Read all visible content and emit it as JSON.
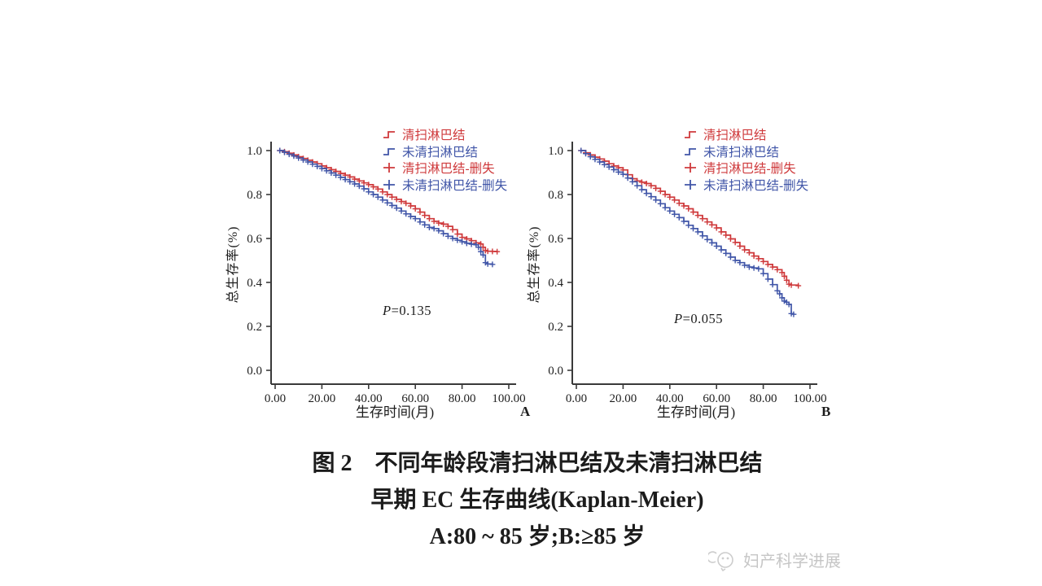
{
  "colors": {
    "dissected_red": "#cf3a3c",
    "non_dissected_blue": "#4156a8",
    "axis": "#3a3a3a",
    "text": "#1c1c1c",
    "watermark": "#c6c6c6"
  },
  "legend": {
    "position": "top-right",
    "items": [
      {
        "label": "清扫淋巴结",
        "marker": "step",
        "color": "#cf3a3c"
      },
      {
        "label": "未清扫淋巴结",
        "marker": "step",
        "color": "#4156a8"
      },
      {
        "label": "清扫淋巴结-删失",
        "marker": "plus",
        "color": "#cf3a3c"
      },
      {
        "label": "未清扫淋巴结-删失",
        "marker": "plus",
        "color": "#4156a8"
      }
    ]
  },
  "chart_data": [
    {
      "type": "line",
      "subtype": "kaplan-meier-step",
      "panel_label": "A",
      "p_sym": "P",
      "p_val": "=0.135",
      "p_value": 0.135,
      "xlabel": "生存时间(月)",
      "ylabel": "总生存率(%)",
      "xlim": [
        0,
        105
      ],
      "ylim": [
        0.0,
        1.05
      ],
      "x_ticks": [
        "0.00",
        "20.00",
        "40.00",
        "60.00",
        "80.00",
        "100.00"
      ],
      "y_ticks": [
        "0.0",
        "0.2",
        "0.4",
        "0.6",
        "0.8",
        "1.0"
      ],
      "grid": false,
      "series": [
        {
          "name": "清扫淋巴结",
          "color": "#cf3a3c",
          "points": [
            [
              2,
              1.0
            ],
            [
              4,
              0.995
            ],
            [
              6,
              0.988
            ],
            [
              8,
              0.98
            ],
            [
              10,
              0.972
            ],
            [
              12,
              0.964
            ],
            [
              14,
              0.956
            ],
            [
              16,
              0.948
            ],
            [
              18,
              0.94
            ],
            [
              20,
              0.93
            ],
            [
              22,
              0.922
            ],
            [
              24,
              0.913
            ],
            [
              26,
              0.905
            ],
            [
              28,
              0.896
            ],
            [
              30,
              0.888
            ],
            [
              32,
              0.88
            ],
            [
              34,
              0.87
            ],
            [
              36,
              0.862
            ],
            [
              38,
              0.853
            ],
            [
              40,
              0.845
            ],
            [
              42,
              0.835
            ],
            [
              44,
              0.825
            ],
            [
              46,
              0.812
            ],
            [
              48,
              0.8
            ],
            [
              50,
              0.788
            ],
            [
              52,
              0.778
            ],
            [
              54,
              0.768
            ],
            [
              56,
              0.76
            ],
            [
              58,
              0.748
            ],
            [
              60,
              0.735
            ],
            [
              62,
              0.72
            ],
            [
              64,
              0.705
            ],
            [
              66,
              0.69
            ],
            [
              68,
              0.678
            ],
            [
              70,
              0.67
            ],
            [
              72,
              0.665
            ],
            [
              74,
              0.655
            ],
            [
              76,
              0.64
            ],
            [
              78,
              0.62
            ],
            [
              80,
              0.605
            ],
            [
              82,
              0.598
            ],
            [
              84,
              0.59
            ],
            [
              86,
              0.58
            ],
            [
              88,
              0.575
            ],
            [
              89,
              0.56
            ],
            [
              90,
              0.545
            ],
            [
              91,
              0.542
            ],
            [
              93,
              0.541
            ],
            [
              95,
              0.54
            ]
          ]
        },
        {
          "name": "未清扫淋巴结",
          "color": "#4156a8",
          "points": [
            [
              2,
              1.0
            ],
            [
              4,
              0.992
            ],
            [
              6,
              0.983
            ],
            [
              8,
              0.975
            ],
            [
              10,
              0.966
            ],
            [
              12,
              0.957
            ],
            [
              14,
              0.948
            ],
            [
              16,
              0.938
            ],
            [
              18,
              0.928
            ],
            [
              20,
              0.918
            ],
            [
              22,
              0.908
            ],
            [
              24,
              0.898
            ],
            [
              26,
              0.888
            ],
            [
              28,
              0.878
            ],
            [
              30,
              0.868
            ],
            [
              32,
              0.858
            ],
            [
              34,
              0.848
            ],
            [
              36,
              0.838
            ],
            [
              38,
              0.826
            ],
            [
              40,
              0.812
            ],
            [
              42,
              0.8
            ],
            [
              44,
              0.788
            ],
            [
              46,
              0.775
            ],
            [
              48,
              0.762
            ],
            [
              50,
              0.75
            ],
            [
              52,
              0.738
            ],
            [
              54,
              0.725
            ],
            [
              56,
              0.712
            ],
            [
              58,
              0.7
            ],
            [
              60,
              0.69
            ],
            [
              62,
              0.675
            ],
            [
              64,
              0.662
            ],
            [
              66,
              0.65
            ],
            [
              68,
              0.645
            ],
            [
              70,
              0.635
            ],
            [
              72,
              0.622
            ],
            [
              74,
              0.61
            ],
            [
              76,
              0.6
            ],
            [
              78,
              0.592
            ],
            [
              80,
              0.585
            ],
            [
              82,
              0.578
            ],
            [
              84,
              0.574
            ],
            [
              86,
              0.571
            ],
            [
              87,
              0.56
            ],
            [
              88,
              0.54
            ],
            [
              89,
              0.525
            ],
            [
              90,
              0.49
            ],
            [
              91,
              0.484
            ],
            [
              93,
              0.482
            ]
          ]
        }
      ]
    },
    {
      "type": "line",
      "subtype": "kaplan-meier-step",
      "panel_label": "B",
      "p_sym": "P",
      "p_val": "=0.055",
      "p_value": 0.055,
      "xlabel": "生存时间(月)",
      "ylabel": "总生存率(%)",
      "xlim": [
        0,
        105
      ],
      "ylim": [
        0.0,
        1.05
      ],
      "x_ticks": [
        "0.00",
        "20.00",
        "40.00",
        "60.00",
        "80.00",
        "100.00"
      ],
      "y_ticks": [
        "0.0",
        "0.2",
        "0.4",
        "0.6",
        "0.8",
        "1.0"
      ],
      "grid": false,
      "series": [
        {
          "name": "清扫淋巴结",
          "color": "#cf3a3c",
          "points": [
            [
              2,
              1.0
            ],
            [
              4,
              0.99
            ],
            [
              6,
              0.98
            ],
            [
              8,
              0.97
            ],
            [
              10,
              0.962
            ],
            [
              12,
              0.952
            ],
            [
              14,
              0.94
            ],
            [
              16,
              0.93
            ],
            [
              18,
              0.922
            ],
            [
              20,
              0.912
            ],
            [
              22,
              0.89
            ],
            [
              24,
              0.872
            ],
            [
              26,
              0.862
            ],
            [
              28,
              0.856
            ],
            [
              30,
              0.85
            ],
            [
              32,
              0.84
            ],
            [
              34,
              0.828
            ],
            [
              36,
              0.815
            ],
            [
              38,
              0.8
            ],
            [
              40,
              0.788
            ],
            [
              42,
              0.775
            ],
            [
              44,
              0.76
            ],
            [
              46,
              0.748
            ],
            [
              48,
              0.735
            ],
            [
              50,
              0.72
            ],
            [
              52,
              0.705
            ],
            [
              54,
              0.69
            ],
            [
              56,
              0.675
            ],
            [
              58,
              0.662
            ],
            [
              60,
              0.648
            ],
            [
              62,
              0.63
            ],
            [
              64,
              0.615
            ],
            [
              66,
              0.598
            ],
            [
              68,
              0.582
            ],
            [
              70,
              0.565
            ],
            [
              72,
              0.548
            ],
            [
              74,
              0.535
            ],
            [
              76,
              0.52
            ],
            [
              78,
              0.508
            ],
            [
              80,
              0.495
            ],
            [
              82,
              0.482
            ],
            [
              84,
              0.47
            ],
            [
              86,
              0.458
            ],
            [
              88,
              0.445
            ],
            [
              89,
              0.428
            ],
            [
              90,
              0.41
            ],
            [
              91,
              0.392
            ],
            [
              92,
              0.388
            ],
            [
              95,
              0.385
            ]
          ]
        },
        {
          "name": "未清扫淋巴结",
          "color": "#4156a8",
          "points": [
            [
              2,
              1.0
            ],
            [
              4,
              0.986
            ],
            [
              6,
              0.972
            ],
            [
              8,
              0.96
            ],
            [
              10,
              0.948
            ],
            [
              12,
              0.936
            ],
            [
              14,
              0.925
            ],
            [
              16,
              0.913
            ],
            [
              18,
              0.902
            ],
            [
              20,
              0.892
            ],
            [
              22,
              0.875
            ],
            [
              24,
              0.858
            ],
            [
              26,
              0.84
            ],
            [
              28,
              0.822
            ],
            [
              30,
              0.805
            ],
            [
              32,
              0.79
            ],
            [
              34,
              0.775
            ],
            [
              36,
              0.758
            ],
            [
              38,
              0.74
            ],
            [
              40,
              0.725
            ],
            [
              42,
              0.71
            ],
            [
              44,
              0.695
            ],
            [
              46,
              0.678
            ],
            [
              48,
              0.66
            ],
            [
              50,
              0.645
            ],
            [
              52,
              0.63
            ],
            [
              54,
              0.612
            ],
            [
              56,
              0.595
            ],
            [
              58,
              0.58
            ],
            [
              60,
              0.565
            ],
            [
              62,
              0.548
            ],
            [
              64,
              0.532
            ],
            [
              66,
              0.515
            ],
            [
              68,
              0.5
            ],
            [
              70,
              0.49
            ],
            [
              72,
              0.478
            ],
            [
              74,
              0.47
            ],
            [
              76,
              0.466
            ],
            [
              78,
              0.462
            ],
            [
              80,
              0.44
            ],
            [
              82,
              0.415
            ],
            [
              84,
              0.39
            ],
            [
              86,
              0.362
            ],
            [
              87,
              0.348
            ],
            [
              88,
              0.33
            ],
            [
              89,
              0.315
            ],
            [
              90,
              0.31
            ],
            [
              91,
              0.3
            ],
            [
              92,
              0.258
            ],
            [
              93,
              0.255
            ]
          ]
        }
      ]
    }
  ],
  "caption": {
    "line1": "图 2　不同年龄段清扫淋巴结及未清扫淋巴结",
    "line2": "早期 EC 生存曲线(Kaplan-Meier)",
    "line3": "A:80 ~ 85 岁;B:≥85 岁"
  },
  "watermark": {
    "text": "妇产科学进展"
  }
}
